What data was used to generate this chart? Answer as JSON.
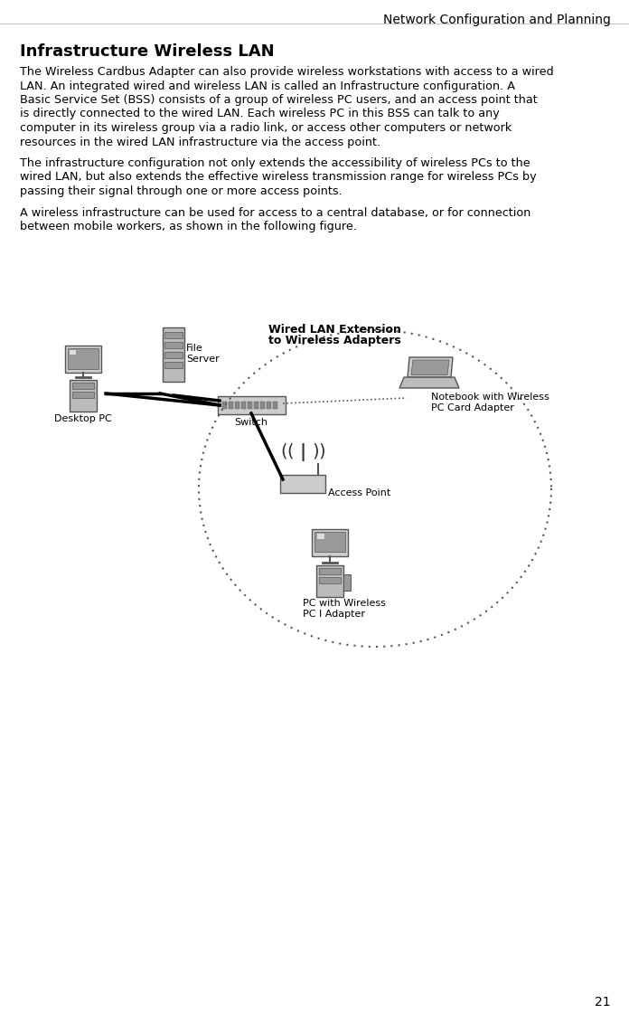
{
  "header": "Network Configuration and Planning",
  "header_fontsize": 10,
  "page_number": "21",
  "title": "Infrastructure Wireless LAN",
  "title_fontsize": 13,
  "para1": "The Wireless Cardbus Adapter can also provide wireless workstations with access to a wired LAN. An integrated wired and wireless LAN is called an Infrastructure configuration. A Basic Service Set (BSS) consists of a group of wireless PC users, and an access point that is directly connected to the wired LAN. Each wireless PC in this BSS can talk to any computer in its wireless group via a radio link, or access other computers or network resources in the wired LAN infrastructure via the access point.",
  "para2": "The infrastructure configuration not only extends the accessibility of wireless PCs to the wired LAN, but also extends the effective wireless transmission range for wireless PCs by passing their signal through one or more access points.",
  "para3": "A wireless infrastructure can be used for access to a central database, or for connection between mobile workers, as shown in the following figure.",
  "body_fontsize": 9.5,
  "diagram_label_wired": "Wired LAN Extension",
  "diagram_label_wireless": "to Wireless Adapters",
  "label_file_server": "File\nServer",
  "label_desktop_pc": "Desktop PC",
  "label_switch": "Switch",
  "label_notebook": "Notebook with Wireless\nPC Card Adapter",
  "label_access_point": "Access Point",
  "label_pc_wireless": "PC with Wireless\nPC I Adapter",
  "bg_color": "#ffffff",
  "text_color": "#000000",
  "line_color": "#000000",
  "dotted_circle_color": "#555555"
}
